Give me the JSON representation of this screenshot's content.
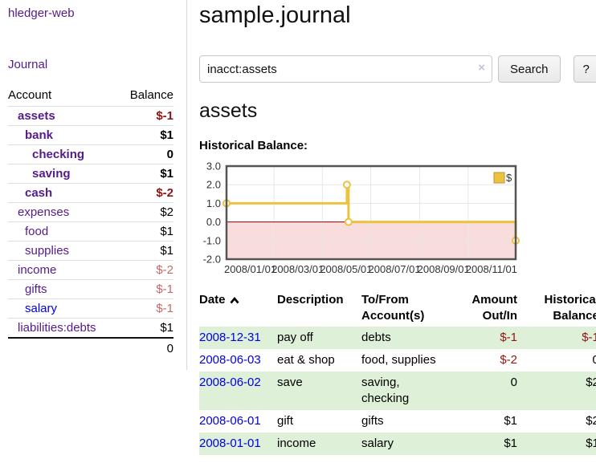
{
  "sidebar": {
    "app_title": "hledger-web",
    "journal_link": "Journal",
    "accounts_table": {
      "headers": {
        "account": "Account",
        "balance": "Balance"
      },
      "rows": [
        {
          "name": "assets",
          "balance": "$-1",
          "depth": 1,
          "bold": true
        },
        {
          "name": "bank",
          "balance": "$1",
          "depth": 2,
          "bold": true
        },
        {
          "name": "checking",
          "balance": "0",
          "depth": 3,
          "bold": true
        },
        {
          "name": "saving",
          "balance": "$1",
          "depth": 3,
          "bold": true
        },
        {
          "name": "cash",
          "balance": "$-2",
          "depth": 2,
          "bold": true
        },
        {
          "name": "expenses",
          "balance": "$2",
          "depth": 1,
          "bold": false
        },
        {
          "name": "food",
          "balance": "$1",
          "depth": 2,
          "bold": false
        },
        {
          "name": "supplies",
          "balance": "$1",
          "depth": 2,
          "bold": false
        },
        {
          "name": "income",
          "balance": "$-2",
          "depth": 1,
          "bold": false
        },
        {
          "name": "gifts",
          "balance": "$-1",
          "depth": 2,
          "bold": false
        },
        {
          "name": "salary",
          "balance": "$-1",
          "depth": 2,
          "bold": false,
          "unvisited": true
        },
        {
          "name": "liabilities:debts",
          "balance": "$1",
          "depth": 1,
          "bold": false
        }
      ],
      "total": "0"
    }
  },
  "header": {
    "title": "sample.journal"
  },
  "search": {
    "query": "inacct:assets",
    "clear_icon": "×",
    "search_label": "Search",
    "help_label": "?"
  },
  "main": {
    "account_heading": "assets",
    "chart_label": "Historical Balance:"
  },
  "chart_data": {
    "type": "line",
    "title": "Historical Balance:",
    "step": true,
    "legend": [
      {
        "label": "$",
        "color": "#edc240"
      }
    ],
    "legend_position": "top-right",
    "x_start": "2008-01-01",
    "x_end": "2008-12-31",
    "points": [
      [
        "2008-01-01",
        1
      ],
      [
        "2008-06-01",
        2
      ],
      [
        "2008-06-03",
        0
      ],
      [
        "2008-12-31",
        -1
      ]
    ],
    "x_ticks": [
      "2008/01/01",
      "2008/03/01",
      "2008/05/01",
      "2008/07/01",
      "2008/09/01",
      "2008/11/01"
    ],
    "y_ticks": [
      3,
      2,
      1,
      0,
      -1,
      -2
    ],
    "ylim": [
      -2,
      3
    ],
    "grid": true,
    "series_color": "#edc240",
    "marker_fill": "#ffffff",
    "negative_fill": "#f9dcdc",
    "zero_line_color": "#8b0000",
    "grid_color": "#e7e7e7",
    "border_color": "#545454",
    "tick_label_color": "#333333"
  },
  "register_table": {
    "headers": {
      "date": "Date",
      "sort_icon": "chevron-up",
      "description": "Description",
      "accounts": "To/From Account(s)",
      "amount": "Amount Out/In",
      "balance": "Historical Balance"
    },
    "rows": [
      {
        "date": "2008-12-31",
        "description": "pay off",
        "accounts": "debts",
        "amount": "$-1",
        "balance": "$-1"
      },
      {
        "date": "2008-06-03",
        "description": "eat & shop",
        "accounts": "food, supplies",
        "amount": "$-2",
        "balance": "0"
      },
      {
        "date": "2008-06-02",
        "description": "save",
        "accounts": "saving, checking",
        "amount": "0",
        "balance": "$2"
      },
      {
        "date": "2008-06-01",
        "description": "gift",
        "accounts": "gifts",
        "amount": "$1",
        "balance": "$2"
      },
      {
        "date": "2008-01-01",
        "description": "income",
        "accounts": "salary",
        "amount": "$1",
        "balance": "$1"
      }
    ]
  },
  "colors": {
    "link_purple": "#551a8b",
    "link_blue": "#0000e6",
    "negative_red": "#8f1515",
    "negative_muted": "#c46868",
    "row_stripe_green": "#def0d8",
    "chart_gold": "#edc240"
  }
}
